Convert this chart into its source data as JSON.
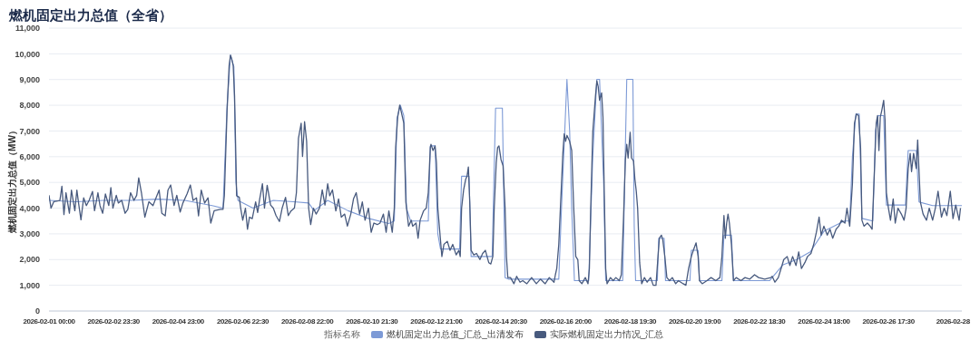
{
  "chart_data": {
    "type": "line",
    "title": "燃机固定出力总值（全省）",
    "ylabel": "燃机固定出力总值（MW）",
    "legend_title": "指标名称",
    "legend": "bottom",
    "grid": "y",
    "marker": "none",
    "line_style": "solid",
    "xlim": [
      "2026-02-01T00:00",
      "2026-02-28T23:30"
    ],
    "xticks": [
      {
        "value": "2026-02-01T00:00",
        "label": "2026-02-01 00:00"
      },
      {
        "value": "2026-02-02T23:30",
        "label": "2026-02-02 23:30"
      },
      {
        "value": "2026-02-04T23:00",
        "label": "2026-02-04 23:00"
      },
      {
        "value": "2026-02-06T22:30",
        "label": "2026-02-06 22:30"
      },
      {
        "value": "2026-02-08T22:00",
        "label": "2026-02-08 22:00"
      },
      {
        "value": "2026-02-10T21:30",
        "label": "2026-02-10 21:30"
      },
      {
        "value": "2026-02-12T21:00",
        "label": "2026-02-12 21:00"
      },
      {
        "value": "2026-02-14T20:30",
        "label": "2026-02-14 20:30"
      },
      {
        "value": "2026-02-16T20:00",
        "label": "2026-02-16 20:00"
      },
      {
        "value": "2026-02-18T19:30",
        "label": "2026-02-18 19:30"
      },
      {
        "value": "2026-02-20T19:00",
        "label": "2026-02-20 19:00"
      },
      {
        "value": "2026-02-22T18:30",
        "label": "2026-02-22 18:30"
      },
      {
        "value": "2026-02-24T18:00",
        "label": "2026-02-24 18:00"
      },
      {
        "value": "2026-02-26T17:30",
        "label": "2026-02-26 17:30"
      },
      {
        "value": "2026-02-28T17:00",
        "label": "2026-02-28"
      }
    ],
    "ylim": [
      0,
      11000
    ],
    "yticks": [
      0,
      {
        "value": 1000,
        "label": "1,000"
      },
      {
        "value": 2000,
        "label": "2,000"
      },
      {
        "value": 3000,
        "label": "3,000"
      },
      {
        "value": 4000,
        "label": "4,000"
      },
      {
        "value": 5000,
        "label": "5,000"
      },
      {
        "value": 6000,
        "label": "6,000"
      },
      {
        "value": 7000,
        "label": "7,000"
      },
      {
        "value": 8000,
        "label": "8,000"
      },
      {
        "value": 9000,
        "label": "9,000"
      },
      {
        "value": 10000,
        "label": "10,000"
      },
      {
        "value": 11000,
        "label": "11,000"
      }
    ],
    "series": [
      {
        "name": "燃机固定出力总值_汇总_出清发布",
        "color": "#7d9ad6",
        "x": [
          "2026-02-01T00:00",
          "2026-02-01T20:00",
          "2026-02-02T16:00",
          "2026-02-03T12:00",
          "2026-02-04T08:00",
          "2026-02-05T04:00",
          "2026-02-06T00:00",
          "2026-02-06T08:00",
          "2026-02-06T11:00",
          "2026-02-06T13:30",
          "2026-02-06T16:00",
          "2026-02-06T17:30",
          "2026-02-06T19:00",
          "2026-02-07T06:00",
          "2026-02-07T21:00",
          "2026-02-08T12:00",
          "2026-02-08T23:00",
          "2026-02-09T03:00",
          "2026-02-09T13:00",
          "2026-02-10T04:00",
          "2026-02-10T19:00",
          "2026-02-11T10:00",
          "2026-02-11T14:00",
          "2026-02-11T16:00",
          "2026-02-11T18:30",
          "2026-02-11T21:00",
          "2026-02-11T23:00",
          "2026-02-12T02:00",
          "2026-02-12T15:00",
          "2026-02-12T16:30",
          "2026-02-12T20:00",
          "2026-02-12T22:00",
          "2026-02-13T00:00",
          "2026-02-13T14:00",
          "2026-02-13T15:30",
          "2026-02-13T21:00",
          "2026-02-13T22:30",
          "2026-02-14T14:00",
          "2026-02-14T16:30",
          "2026-02-14T21:30",
          "2026-02-14T23:30",
          "2026-02-15T02:00",
          "2026-02-16T15:00",
          "2026-02-16T17:00",
          "2026-02-16T21:00",
          "2026-02-16T23:00",
          "2026-02-17T00:30",
          "2026-02-17T02:30",
          "2026-02-17T13:00",
          "2026-02-17T16:00",
          "2026-02-17T19:00",
          "2026-02-17T21:00",
          "2026-02-18T00:00",
          "2026-02-18T01:30",
          "2026-02-18T14:00",
          "2026-02-18T17:00",
          "2026-02-18T21:30",
          "2026-02-18T22:30",
          "2026-02-18T23:30",
          "2026-02-19T15:30",
          "2026-02-19T16:30",
          "2026-02-19T20:30",
          "2026-02-19T21:30",
          "2026-02-20T15:30",
          "2026-02-20T16:30",
          "2026-02-20T21:30",
          "2026-02-20T22:30",
          "2026-02-21T15:00",
          "2026-02-21T16:30",
          "2026-02-21T22:00",
          "2026-02-21T23:30",
          "2026-02-23T02:00",
          "2026-02-23T12:00",
          "2026-02-23T22:00",
          "2026-02-24T08:00",
          "2026-02-24T18:00",
          "2026-02-25T09:00",
          "2026-02-25T13:00",
          "2026-02-25T15:00",
          "2026-02-25T17:30",
          "2026-02-25T20:00",
          "2026-02-25T22:00",
          "2026-02-26T06:00",
          "2026-02-26T08:00",
          "2026-02-26T10:00",
          "2026-02-26T14:00",
          "2026-02-26T16:00",
          "2026-02-27T06:00",
          "2026-02-27T08:00",
          "2026-02-27T14:00",
          "2026-02-27T16:00",
          "2026-02-28T02:00",
          "2026-02-28T12:00",
          "2026-02-28T23:30"
        ],
        "values": [
          4300,
          4250,
          4300,
          4300,
          4350,
          4300,
          4100,
          4000,
          8000,
          9950,
          9500,
          5000,
          4300,
          4000,
          4300,
          4250,
          4200,
          3900,
          4300,
          3900,
          3600,
          3400,
          3500,
          7500,
          8000,
          7600,
          4000,
          3500,
          3500,
          6420,
          6420,
          3000,
          2410,
          2410,
          5240,
          5240,
          2120,
          2120,
          7890,
          7890,
          1300,
          1240,
          1240,
          4000,
          9010,
          7000,
          4000,
          1180,
          1180,
          6000,
          9010,
          9010,
          5000,
          1180,
          1180,
          9010,
          9010,
          3300,
          1180,
          1180,
          2830,
          2830,
          1180,
          1180,
          2360,
          2360,
          1180,
          1180,
          2950,
          2950,
          1180,
          1180,
          1800,
          2000,
          2300,
          3100,
          3500,
          3500,
          6000,
          7660,
          7660,
          3600,
          3500,
          7000,
          7600,
          7600,
          4120,
          4120,
          6240,
          6240,
          4240,
          4100,
          4100,
          4100
        ]
      },
      {
        "name": "实际燃机固定出力情况_汇总",
        "color": "#485a7e",
        "x": [
          "2026-02-01T00:00",
          "2026-02-01T01:30",
          "2026-02-01T03:30",
          "2026-02-01T08:00",
          "2026-02-01T09:30",
          "2026-02-01T11:00",
          "2026-02-01T12:30",
          "2026-02-01T15:00",
          "2026-02-01T16:30",
          "2026-02-01T19:00",
          "2026-02-01T20:30",
          "2026-02-01T22:00",
          "2026-02-01T23:30",
          "2026-02-02T01:30",
          "2026-02-02T03:30",
          "2026-02-02T05:30",
          "2026-02-02T08:00",
          "2026-02-02T09:30",
          "2026-02-02T12:00",
          "2026-02-02T13:30",
          "2026-02-02T15:30",
          "2026-02-02T17:30",
          "2026-02-02T20:00",
          "2026-02-02T21:30",
          "2026-02-02T23:00",
          "2026-02-03T01:30",
          "2026-02-03T03:00",
          "2026-02-03T05:30",
          "2026-02-03T08:00",
          "2026-02-03T10:00",
          "2026-02-03T12:00",
          "2026-02-03T14:30",
          "2026-02-03T16:30",
          "2026-02-03T18:00",
          "2026-02-03T20:00",
          "2026-02-03T22:30",
          "2026-02-04T01:30",
          "2026-02-04T04:30",
          "2026-02-04T07:30",
          "2026-02-04T09:00",
          "2026-02-04T11:00",
          "2026-02-04T13:30",
          "2026-02-04T15:30",
          "2026-02-04T17:30",
          "2026-02-04T20:00",
          "2026-02-04T22:00",
          "2026-02-05T00:30",
          "2026-02-05T02:30",
          "2026-02-05T05:30",
          "2026-02-05T08:00",
          "2026-02-05T10:00",
          "2026-02-05T12:30",
          "2026-02-05T14:00",
          "2026-02-05T16:00",
          "2026-02-05T18:30",
          "2026-02-05T21:00",
          "2026-02-05T23:00",
          "2026-02-06T01:30",
          "2026-02-06T06:00",
          "2026-02-06T08:00",
          "2026-02-06T09:00",
          "2026-02-06T11:00",
          "2026-02-06T12:30",
          "2026-02-06T13:30",
          "2026-02-06T14:30",
          "2026-02-06T15:30",
          "2026-02-06T16:30",
          "2026-02-06T17:30",
          "2026-02-06T18:00",
          "2026-02-06T20:00",
          "2026-02-06T21:00",
          "2026-02-06T22:30",
          "2026-02-07T00:30",
          "2026-02-07T02:00",
          "2026-02-07T03:30",
          "2026-02-07T05:30",
          "2026-02-07T08:00",
          "2026-02-07T09:30",
          "2026-02-07T11:00",
          "2026-02-07T13:00",
          "2026-02-07T14:30",
          "2026-02-07T16:30",
          "2026-02-07T19:00",
          "2026-02-07T21:00",
          "2026-02-07T23:00",
          "2026-02-08T01:30",
          "2026-02-08T03:30",
          "2026-02-08T06:00",
          "2026-02-08T08:00",
          "2026-02-08T10:00",
          "2026-02-08T12:30",
          "2026-02-08T14:00",
          "2026-02-08T15:30",
          "2026-02-08T17:30",
          "2026-02-08T18:30",
          "2026-02-08T20:00",
          "2026-02-08T21:30",
          "2026-02-08T23:00",
          "2026-02-09T00:30",
          "2026-02-09T02:30",
          "2026-02-09T04:30",
          "2026-02-09T07:00",
          "2026-02-09T09:00",
          "2026-02-09T11:00",
          "2026-02-09T13:00",
          "2026-02-09T14:30",
          "2026-02-09T16:30",
          "2026-02-09T19:00",
          "2026-02-09T21:00",
          "2026-02-09T23:00",
          "2026-02-10T01:30",
          "2026-02-10T03:30",
          "2026-02-10T06:00",
          "2026-02-10T08:00",
          "2026-02-10T10:00",
          "2026-02-10T12:30",
          "2026-02-10T14:30",
          "2026-02-10T16:30",
          "2026-02-10T19:00",
          "2026-02-10T21:00",
          "2026-02-10T23:00",
          "2026-02-11T01:30",
          "2026-02-11T03:30",
          "2026-02-11T06:00",
          "2026-02-11T08:00",
          "2026-02-11T10:00",
          "2026-02-11T12:30",
          "2026-02-11T14:00",
          "2026-02-11T15:00",
          "2026-02-11T16:30",
          "2026-02-11T18:00",
          "2026-02-11T20:00",
          "2026-02-11T21:00",
          "2026-02-11T22:30",
          "2026-02-12T00:30",
          "2026-02-12T02:30",
          "2026-02-12T03:30",
          "2026-02-12T06:00",
          "2026-02-12T07:30",
          "2026-02-12T09:00",
          "2026-02-12T11:30",
          "2026-02-12T13:30",
          "2026-02-12T15:00",
          "2026-02-12T16:30",
          "2026-02-12T17:00",
          "2026-02-12T18:30",
          "2026-02-12T20:00",
          "2026-02-12T21:00",
          "2026-02-12T22:00",
          "2026-02-12T23:30",
          "2026-02-13T01:00",
          "2026-02-13T02:30",
          "2026-02-13T05:00",
          "2026-02-13T07:00",
          "2026-02-13T09:00",
          "2026-02-13T11:30",
          "2026-02-13T13:30",
          "2026-02-13T14:30",
          "2026-02-13T15:30",
          "2026-02-13T17:00",
          "2026-02-13T18:30",
          "2026-02-13T19:30",
          "2026-02-13T20:30",
          "2026-02-13T21:30",
          "2026-02-13T22:30",
          "2026-02-14T00:30",
          "2026-02-14T02:30",
          "2026-02-14T05:00",
          "2026-02-14T07:00",
          "2026-02-14T09:00",
          "2026-02-14T11:30",
          "2026-02-14T13:00",
          "2026-02-14T14:30",
          "2026-02-14T15:30",
          "2026-02-14T17:00",
          "2026-02-14T18:00",
          "2026-02-14T19:00",
          "2026-02-14T20:30",
          "2026-02-14T22:00",
          "2026-02-14T23:30",
          "2026-02-15T00:30",
          "2026-02-15T01:30",
          "2026-02-15T03:30",
          "2026-02-15T06:00",
          "2026-02-15T08:00",
          "2026-02-15T10:30",
          "2026-02-15T12:30",
          "2026-02-15T15:30",
          "2026-02-15T19:00",
          "2026-02-15T22:30",
          "2026-02-16T01:30",
          "2026-02-16T05:00",
          "2026-02-16T08:00",
          "2026-02-16T11:30",
          "2026-02-16T12:30",
          "2026-02-16T13:30",
          "2026-02-16T15:00",
          "2026-02-16T17:00",
          "2026-02-16T18:00",
          "2026-02-16T19:00",
          "2026-02-16T20:00",
          "2026-02-16T21:00",
          "2026-02-16T23:00",
          "2026-02-17T00:30",
          "2026-02-17T02:00",
          "2026-02-17T03:30",
          "2026-02-17T05:00",
          "2026-02-17T06:00",
          "2026-02-17T08:00",
          "2026-02-17T10:30",
          "2026-02-17T12:30",
          "2026-02-17T13:30",
          "2026-02-17T14:30",
          "2026-02-17T16:00",
          "2026-02-17T18:00",
          "2026-02-17T19:00",
          "2026-02-17T20:00",
          "2026-02-17T21:00",
          "2026-02-17T22:30",
          "2026-02-17T23:30",
          "2026-02-18T00:30",
          "2026-02-18T01:30",
          "2026-02-18T02:30",
          "2026-02-18T05:00",
          "2026-02-18T07:00",
          "2026-02-18T09:00",
          "2026-02-18T11:30",
          "2026-02-18T13:00",
          "2026-02-18T14:30",
          "2026-02-18T16:00",
          "2026-02-18T17:00",
          "2026-02-18T18:00",
          "2026-02-18T19:30",
          "2026-02-18T20:30",
          "2026-02-18T22:00",
          "2026-02-18T23:00",
          "2026-02-19T00:00",
          "2026-02-19T01:00",
          "2026-02-19T02:30",
          "2026-02-19T04:00",
          "2026-02-19T06:00",
          "2026-02-19T08:00",
          "2026-02-19T10:30",
          "2026-02-19T12:30",
          "2026-02-19T14:30",
          "2026-02-19T16:00",
          "2026-02-19T17:00",
          "2026-02-19T18:30",
          "2026-02-19T19:30",
          "2026-02-19T21:00",
          "2026-02-19T22:30",
          "2026-02-20T00:30",
          "2026-02-20T02:30",
          "2026-02-20T05:00",
          "2026-02-20T07:00",
          "2026-02-20T10:30",
          "2026-02-20T12:30",
          "2026-02-20T14:30",
          "2026-02-20T16:30",
          "2026-02-20T18:00",
          "2026-02-20T20:00",
          "2026-02-20T21:30",
          "2026-02-20T22:30",
          "2026-02-21T00:30",
          "2026-02-21T04:00",
          "2026-02-21T07:00",
          "2026-02-21T10:30",
          "2026-02-21T13:30",
          "2026-02-21T15:00",
          "2026-02-21T16:30",
          "2026-02-21T17:30",
          "2026-02-21T18:30",
          "2026-02-21T19:30",
          "2026-02-21T20:30",
          "2026-02-21T22:00",
          "2026-02-21T23:30",
          "2026-02-22T01:30",
          "2026-02-22T05:00",
          "2026-02-22T08:00",
          "2026-02-22T11:30",
          "2026-02-22T15:00",
          "2026-02-22T18:00",
          "2026-02-22T22:30",
          "2026-02-23T03:00",
          "2026-02-23T04:00",
          "2026-02-23T06:00",
          "2026-02-23T08:30",
          "2026-02-23T10:30",
          "2026-02-23T12:30",
          "2026-02-23T15:00",
          "2026-02-23T17:00",
          "2026-02-23T19:00",
          "2026-02-23T21:30",
          "2026-02-23T23:30",
          "2026-02-24T01:30",
          "2026-02-24T04:00",
          "2026-02-24T06:00",
          "2026-02-24T08:30",
          "2026-02-24T10:30",
          "2026-02-24T12:30",
          "2026-02-24T14:30",
          "2026-02-24T16:00",
          "2026-02-24T18:00",
          "2026-02-24T20:30",
          "2026-02-24T22:30",
          "2026-02-25T00:30",
          "2026-02-25T03:00",
          "2026-02-25T05:00",
          "2026-02-25T07:00",
          "2026-02-25T09:30",
          "2026-02-25T11:00",
          "2026-02-25T13:00",
          "2026-02-25T15:00",
          "2026-02-25T16:30",
          "2026-02-25T18:00",
          "2026-02-25T19:30",
          "2026-02-25T21:00",
          "2026-02-25T22:00",
          "2026-02-25T23:30",
          "2026-02-26T02:00",
          "2026-02-26T04:00",
          "2026-02-26T05:30",
          "2026-02-26T07:00",
          "2026-02-26T08:30",
          "2026-02-26T09:30",
          "2026-02-26T10:30",
          "2026-02-26T11:30",
          "2026-02-26T12:30",
          "2026-02-26T14:00",
          "2026-02-26T15:00",
          "2026-02-26T16:00",
          "2026-02-26T17:30",
          "2026-02-26T19:00",
          "2026-02-26T21:00",
          "2026-02-26T22:30",
          "2026-02-27T00:30",
          "2026-02-27T03:00",
          "2026-02-27T05:00",
          "2026-02-27T06:30",
          "2026-02-27T08:00",
          "2026-02-27T09:30",
          "2026-02-27T10:30",
          "2026-02-27T12:00",
          "2026-02-27T14:00",
          "2026-02-27T15:00",
          "2026-02-27T16:00",
          "2026-02-27T17:00",
          "2026-02-27T19:00",
          "2026-02-27T21:30",
          "2026-02-27T23:30",
          "2026-02-28T02:00",
          "2026-02-28T04:00",
          "2026-02-28T06:00",
          "2026-02-28T08:30",
          "2026-02-28T10:30",
          "2026-02-28T12:30",
          "2026-02-28T15:00",
          "2026-02-28T17:00",
          "2026-02-28T19:00",
          "2026-02-28T21:30",
          "2026-02-28T22:30"
        ],
        "values": [
          4500,
          4000,
          4250,
          4300,
          4850,
          3750,
          4600,
          3800,
          4700,
          3900,
          4700,
          4100,
          3550,
          4400,
          4100,
          4300,
          4650,
          3900,
          4600,
          4100,
          3800,
          4550,
          4100,
          4800,
          4000,
          4500,
          4200,
          4300,
          3800,
          3950,
          4600,
          4300,
          4500,
          5180,
          4600,
          3650,
          4250,
          4100,
          4500,
          4700,
          3800,
          3700,
          4700,
          4900,
          4100,
          4500,
          3850,
          4200,
          4550,
          4900,
          4300,
          4400,
          3700,
          4700,
          4200,
          4400,
          3420,
          3900,
          3950,
          3950,
          4500,
          7800,
          9540,
          9950,
          9780,
          9540,
          8360,
          5890,
          4480,
          4420,
          4000,
          3530,
          4000,
          3180,
          3650,
          3590,
          4240,
          3830,
          4360,
          4950,
          4000,
          4890,
          4120,
          4000,
          3710,
          3480,
          4000,
          4420,
          3710,
          3890,
          4000,
          4600,
          6710,
          7300,
          6010,
          7360,
          6600,
          4000,
          3360,
          4000,
          3770,
          4000,
          4710,
          4120,
          4950,
          4480,
          4710,
          3890,
          4360,
          3650,
          3770,
          3300,
          3770,
          4360,
          4600,
          3770,
          4240,
          3530,
          4000,
          3060,
          3420,
          3360,
          3420,
          3770,
          3060,
          3890,
          3060,
          4000,
          6360,
          7540,
          8010,
          7540,
          7300,
          4240,
          3300,
          3530,
          3300,
          3420,
          2830,
          3530,
          3890,
          4000,
          4600,
          6360,
          6480,
          6240,
          6420,
          5770,
          4000,
          3060,
          2120,
          2590,
          2710,
          2360,
          2590,
          2180,
          2360,
          2120,
          4000,
          4710,
          5120,
          5240,
          5600,
          4240,
          2360,
          2180,
          2240,
          2000,
          2240,
          2360,
          1880,
          1830,
          2120,
          4000,
          5770,
          6360,
          6420,
          5890,
          5650,
          4000,
          2120,
          1300,
          1300,
          1060,
          1350,
          1120,
          1180,
          1060,
          1300,
          1060,
          1240,
          1060,
          1300,
          1120,
          1410,
          1650,
          2590,
          4950,
          6130,
          6890,
          6600,
          6830,
          6600,
          6240,
          4000,
          2120,
          2000,
          1180,
          1060,
          1300,
          1060,
          1650,
          4000,
          6950,
          8360,
          8950,
          8720,
          8190,
          8480,
          7540,
          4480,
          1650,
          1060,
          1300,
          1180,
          1300,
          1180,
          1410,
          3420,
          5890,
          6480,
          5950,
          6950,
          5950,
          5830,
          5120,
          4660,
          4000,
          1880,
          1060,
          1300,
          1120,
          1300,
          1000,
          1000,
          2120,
          2830,
          2950,
          2770,
          2120,
          1300,
          1180,
          1300,
          1060,
          1180,
          1060,
          1000,
          1650,
          2120,
          2360,
          2650,
          2120,
          1180,
          1060,
          1180,
          1300,
          1180,
          1300,
          2120,
          3710,
          2830,
          3420,
          3770,
          3420,
          2590,
          1180,
          1300,
          1180,
          1300,
          1240,
          1410,
          1300,
          1240,
          1300,
          1350,
          1120,
          1300,
          1650,
          2000,
          2120,
          1770,
          2120,
          1770,
          2300,
          1650,
          1880,
          2120,
          2240,
          2590,
          3060,
          3650,
          2950,
          3300,
          2950,
          3180,
          2830,
          3180,
          3300,
          3530,
          3420,
          4000,
          3300,
          4950,
          7300,
          7660,
          7600,
          6360,
          3530,
          3300,
          3420,
          3300,
          3180,
          5180,
          7300,
          7600,
          6240,
          7540,
          7770,
          8190,
          7420,
          4600,
          4000,
          3530,
          4360,
          3420,
          4000,
          3770,
          3530,
          4000,
          5540,
          6130,
          5420,
          6130,
          5540,
          6650,
          5420,
          4240,
          3770,
          3530,
          4000,
          3530,
          4000,
          4660,
          3650,
          4000,
          3710,
          4660,
          3590,
          4120,
          3530,
          4000
        ]
      }
    ]
  }
}
